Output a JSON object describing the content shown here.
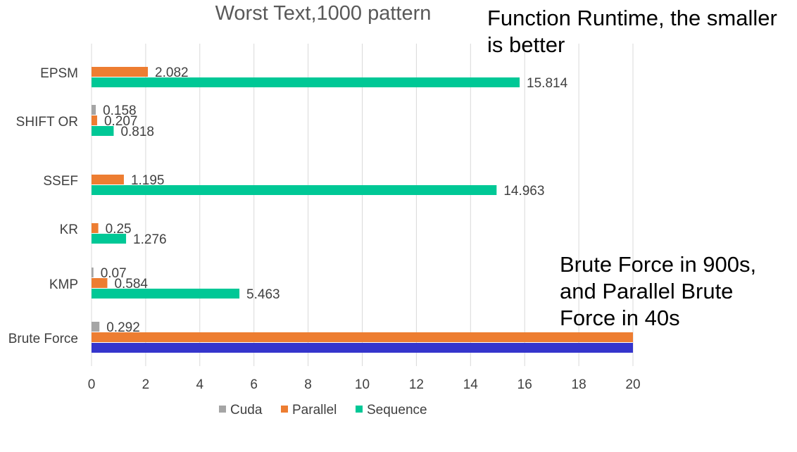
{
  "chart_data": {
    "type": "bar",
    "orientation": "horizontal",
    "title": "Worst Text,1000 pattern",
    "categories": [
      "EPSM",
      "SHIFT OR",
      "SSEF",
      "KR",
      "KMP",
      "Brute Force"
    ],
    "series": [
      {
        "name": "Cuda",
        "color": "#a5a5a5",
        "values": [
          null,
          0.158,
          null,
          null,
          0.07,
          0.292
        ],
        "labels": [
          "",
          "0.158",
          "",
          "",
          "0.07",
          "0.292"
        ]
      },
      {
        "name": "Parallel",
        "color": "#ed7d31",
        "values": [
          2.082,
          0.207,
          1.195,
          0.25,
          0.584,
          20
        ],
        "labels": [
          "2.082",
          "0.207",
          "1.195",
          "0.25",
          "0.584",
          ""
        ]
      },
      {
        "name": "Sequence",
        "color": "#00c896",
        "values": [
          15.814,
          0.818,
          14.963,
          1.276,
          5.463,
          20
        ],
        "labels": [
          "15.814",
          "0.818",
          "14.963",
          "1.276",
          "5.463",
          ""
        ],
        "point_colors": [
          null,
          null,
          null,
          null,
          null,
          "#3535cc"
        ]
      }
    ],
    "xlim": [
      0,
      20
    ],
    "xticks": [
      "0",
      "2",
      "4",
      "6",
      "8",
      "10",
      "12",
      "14",
      "16",
      "18",
      "20"
    ],
    "grid": true,
    "legend": "bottom",
    "colors": {
      "title": "#595959",
      "tick": "#404040",
      "label": "#404040",
      "grid": "#d9d9d9"
    }
  },
  "annotations": {
    "top": "Function Runtime, the smaller\nis better",
    "bottom": "Brute Force in 900s,\nand Parallel Brute\nForce in 40s"
  }
}
